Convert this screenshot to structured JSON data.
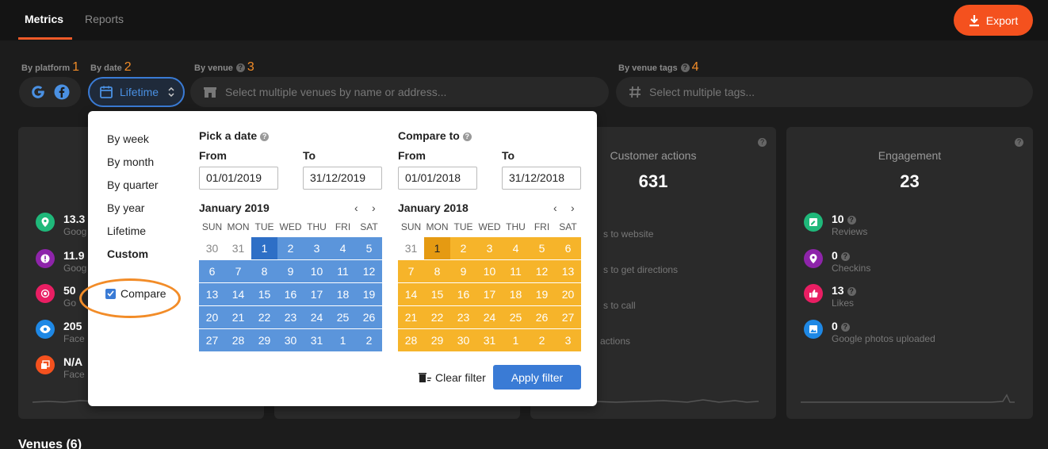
{
  "tabs": [
    {
      "label": "Metrics"
    },
    {
      "label": "Reports"
    }
  ],
  "export_label": "Export",
  "filters": {
    "platform": {
      "label": "By platform",
      "num": "1"
    },
    "date": {
      "label": "By date",
      "num": "2",
      "value": "Lifetime"
    },
    "venue": {
      "label": "By venue",
      "num": "3",
      "placeholder": "Select multiple venues by name or address..."
    },
    "tags": {
      "label": "By venue tags",
      "num": "4",
      "placeholder": "Select multiple tags..."
    }
  },
  "cards": [
    {
      "rows": [
        {
          "value": "13.3",
          "label": "Goog"
        },
        {
          "value": "11.9",
          "label": "Goog"
        },
        {
          "value": "50",
          "label": "Go"
        },
        {
          "value": "205",
          "label": "Face"
        },
        {
          "value": "N/A",
          "label": "Face"
        }
      ]
    },
    {
      "rows": []
    },
    {
      "title": "Customer actions",
      "value": "631",
      "rows": [
        {
          "label": "s to website"
        },
        {
          "label": "s to get directions"
        },
        {
          "label": "s to call"
        },
        {
          "label": "actions"
        }
      ]
    },
    {
      "title": "Engagement",
      "value": "23",
      "rows": [
        {
          "value": "10",
          "label": "Reviews"
        },
        {
          "value": "0",
          "label": "Checkins"
        },
        {
          "value": "13",
          "label": "Likes"
        },
        {
          "value": "0",
          "label": "Google photos uploaded"
        }
      ]
    }
  ],
  "venues_title": "Venues (6)",
  "dropdown": {
    "options": [
      "By week",
      "By month",
      "By quarter",
      "By year",
      "Lifetime",
      "Custom"
    ],
    "compare_label": "Compare",
    "pick": {
      "title": "Pick a date",
      "from_label": "From",
      "to_label": "To",
      "from": "01/01/2019",
      "to": "31/12/2019",
      "month": "January 2019"
    },
    "compare": {
      "title": "Compare to",
      "from_label": "From",
      "to_label": "To",
      "from": "01/01/2018",
      "to": "31/12/2018",
      "month": "January 2018"
    },
    "weekdays": [
      "SUN",
      "MON",
      "TUE",
      "WED",
      "THU",
      "FRI",
      "SAT"
    ],
    "cal2019": [
      "30",
      "31",
      "1",
      "2",
      "3",
      "4",
      "5",
      "6",
      "7",
      "8",
      "9",
      "10",
      "11",
      "12",
      "13",
      "14",
      "15",
      "16",
      "17",
      "18",
      "19",
      "20",
      "21",
      "22",
      "23",
      "24",
      "25",
      "26",
      "27",
      "28",
      "29",
      "30",
      "31",
      "1",
      "2"
    ],
    "cal2018": [
      "31",
      "1",
      "2",
      "3",
      "4",
      "5",
      "6",
      "7",
      "8",
      "9",
      "10",
      "11",
      "12",
      "13",
      "14",
      "15",
      "16",
      "17",
      "18",
      "19",
      "20",
      "21",
      "22",
      "23",
      "24",
      "25",
      "26",
      "27",
      "28",
      "29",
      "30",
      "31",
      "1",
      "2",
      "3"
    ],
    "clear_label": "Clear filter",
    "apply_label": "Apply filter",
    "nav_prev": "‹",
    "nav_next": "›"
  },
  "colors": {
    "accent": "#f4511e",
    "blue": "#3a7bd5",
    "range_blue": "#5b95db",
    "range_yellow": "#f6b42a",
    "annotation": "#f28c28"
  }
}
